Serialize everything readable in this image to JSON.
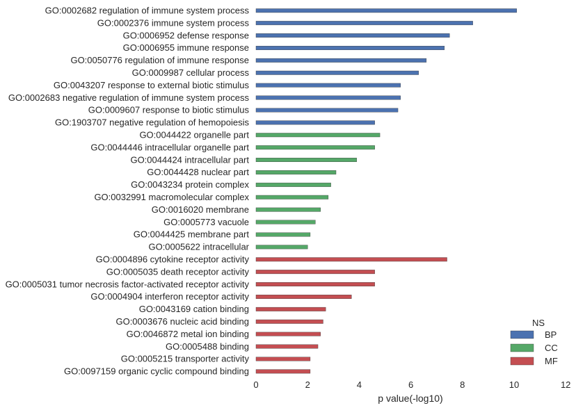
{
  "chart_data": {
    "type": "bar",
    "orientation": "horizontal",
    "xlabel": "p value(-log10)",
    "ylabel": "",
    "xlim": [
      0,
      12
    ],
    "xticks": [
      0,
      2,
      4,
      6,
      8,
      10,
      12
    ],
    "grid": false,
    "legend": {
      "title": "NS",
      "placement": "bottom-right",
      "entries": [
        {
          "name": "BP",
          "color": "#4c72b0"
        },
        {
          "name": "CC",
          "color": "#55a868"
        },
        {
          "name": "MF",
          "color": "#c44e52"
        }
      ]
    },
    "categories": [
      {
        "label": "GO:0002682 regulation of immune system process",
        "value": 10.1,
        "ns": "BP"
      },
      {
        "label": "GO:0002376 immune system process",
        "value": 8.4,
        "ns": "BP"
      },
      {
        "label": "GO:0006952 defense response",
        "value": 7.5,
        "ns": "BP"
      },
      {
        "label": "GO:0006955 immune response",
        "value": 7.3,
        "ns": "BP"
      },
      {
        "label": "GO:0050776 regulation of immune response",
        "value": 6.6,
        "ns": "BP"
      },
      {
        "label": "GO:0009987 cellular process",
        "value": 6.3,
        "ns": "BP"
      },
      {
        "label": "GO:0043207 response to external biotic stimulus",
        "value": 5.6,
        "ns": "BP"
      },
      {
        "label": "GO:0002683 negative regulation of immune system process",
        "value": 5.6,
        "ns": "BP"
      },
      {
        "label": "GO:0009607 response to biotic stimulus",
        "value": 5.5,
        "ns": "BP"
      },
      {
        "label": "GO:1903707 negative regulation of hemopoiesis",
        "value": 4.6,
        "ns": "BP"
      },
      {
        "label": "GO:0044422 organelle part",
        "value": 4.8,
        "ns": "CC"
      },
      {
        "label": "GO:0044446 intracellular organelle part",
        "value": 4.6,
        "ns": "CC"
      },
      {
        "label": "GO:0044424 intracellular part",
        "value": 3.9,
        "ns": "CC"
      },
      {
        "label": "GO:0044428 nuclear part",
        "value": 3.1,
        "ns": "CC"
      },
      {
        "label": "GO:0043234 protein complex",
        "value": 2.9,
        "ns": "CC"
      },
      {
        "label": "GO:0032991 macromolecular complex",
        "value": 2.8,
        "ns": "CC"
      },
      {
        "label": "GO:0016020 membrane",
        "value": 2.5,
        "ns": "CC"
      },
      {
        "label": "GO:0005773 vacuole",
        "value": 2.3,
        "ns": "CC"
      },
      {
        "label": "GO:0044425 membrane part",
        "value": 2.1,
        "ns": "CC"
      },
      {
        "label": "GO:0005622 intracellular",
        "value": 2.0,
        "ns": "CC"
      },
      {
        "label": "GO:0004896 cytokine receptor activity",
        "value": 7.4,
        "ns": "MF"
      },
      {
        "label": "GO:0005035 death receptor activity",
        "value": 4.6,
        "ns": "MF"
      },
      {
        "label": "GO:0005031 tumor necrosis factor-activated receptor activity",
        "value": 4.6,
        "ns": "MF"
      },
      {
        "label": "GO:0004904 interferon receptor activity",
        "value": 3.7,
        "ns": "MF"
      },
      {
        "label": "GO:0043169 cation binding",
        "value": 2.7,
        "ns": "MF"
      },
      {
        "label": "GO:0003676 nucleic acid binding",
        "value": 2.6,
        "ns": "MF"
      },
      {
        "label": "GO:0046872 metal ion binding",
        "value": 2.5,
        "ns": "MF"
      },
      {
        "label": "GO:0005488 binding",
        "value": 2.4,
        "ns": "MF"
      },
      {
        "label": "GO:0005215 transporter activity",
        "value": 2.1,
        "ns": "MF"
      },
      {
        "label": "GO:0097159 organic cyclic compound binding",
        "value": 2.1,
        "ns": "MF"
      }
    ]
  }
}
